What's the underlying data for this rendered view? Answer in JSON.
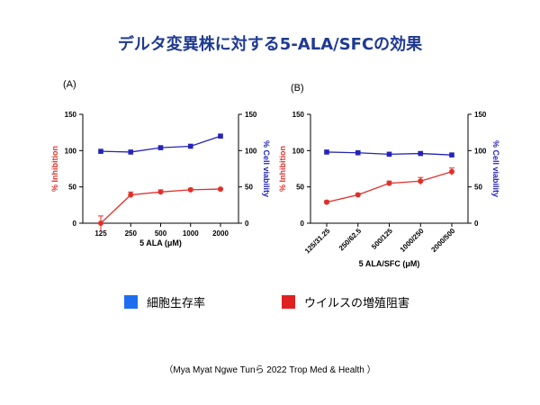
{
  "title": "デルタ変異株に対する5-ALA/SFCの効果",
  "colors": {
    "cell_viability": "#2424b8",
    "inhibition": "#e0302a",
    "legend_blue": "#1e6ff0",
    "legend_red": "#e02020"
  },
  "legend": [
    {
      "label": "細胞生存率",
      "color": "#1e6ff0"
    },
    {
      "label": "ウイルスの増殖阻害",
      "color": "#e02020"
    }
  ],
  "citation": "（Mya Myat Ngwe Tunら 2022  Trop Med & Health ）",
  "chart_data": [
    {
      "panel": "(A)",
      "type": "line",
      "categories": [
        "125",
        "250",
        "500",
        "1000",
        "2000"
      ],
      "xlabel": "5 ALA (μM)",
      "ylabel_left": "% Inhibition",
      "ylabel_right": "% Cell viability",
      "ylim": [
        0,
        150
      ],
      "yticks": [
        "0",
        "50",
        "100",
        "150"
      ],
      "series": [
        {
          "name": "% Cell viability",
          "axis": "right",
          "marker": "square",
          "color": "#2424b8",
          "values": [
            99,
            98,
            104,
            106,
            120
          ]
        },
        {
          "name": "% Inhibition",
          "axis": "left",
          "marker": "circle",
          "color": "#e0302a",
          "values": [
            0,
            39,
            43,
            46,
            47
          ],
          "errors": [
            10,
            4,
            3,
            2,
            1
          ]
        }
      ]
    },
    {
      "panel": "(B)",
      "type": "line",
      "categories": [
        "125/31.25",
        "250/62.5",
        "500/125",
        "1000/250",
        "2000/500"
      ],
      "xlabel": "5 ALA/SFC (μM)",
      "ylabel_left": "% Inhibition",
      "ylabel_right": "% Cell viability",
      "ylim": [
        0,
        150
      ],
      "yticks": [
        "0",
        "50",
        "100",
        "150"
      ],
      "series": [
        {
          "name": "% Cell viability",
          "axis": "right",
          "marker": "square",
          "color": "#2424b8",
          "values": [
            98,
            97,
            95,
            96,
            94
          ]
        },
        {
          "name": "% Inhibition",
          "axis": "left",
          "marker": "circle",
          "color": "#e0302a",
          "values": [
            29,
            39,
            55,
            58,
            71
          ],
          "errors": [
            2,
            2,
            3,
            5,
            5
          ]
        }
      ]
    }
  ]
}
